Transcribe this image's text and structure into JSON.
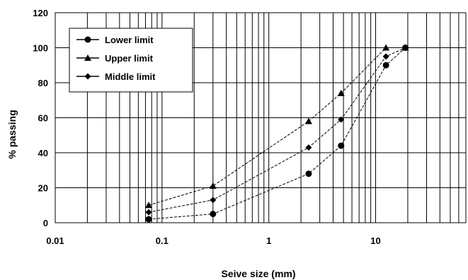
{
  "chart_data": {
    "type": "line",
    "title": "",
    "xlabel": "Seive size (mm)",
    "ylabel": "% passing",
    "x_scale": "log",
    "xlim": [
      0.01,
      70
    ],
    "ylim": [
      0,
      120
    ],
    "x_ticks": [
      {
        "value": 0.01,
        "label": "0.01"
      },
      {
        "value": 0.1,
        "label": "0.1"
      },
      {
        "value": 1,
        "label": "1"
      },
      {
        "value": 10,
        "label": "10"
      }
    ],
    "y_ticks": [
      {
        "value": 0,
        "label": "0"
      },
      {
        "value": 20,
        "label": "20"
      },
      {
        "value": 40,
        "label": "40"
      },
      {
        "value": 60,
        "label": "60"
      },
      {
        "value": 80,
        "label": "80"
      },
      {
        "value": 100,
        "label": "100"
      },
      {
        "value": 120,
        "label": "120"
      }
    ],
    "grid": true,
    "legend_position": "top-left",
    "series": [
      {
        "name": "Lower limit",
        "marker": "circle",
        "x": [
          0.075,
          0.3,
          2.36,
          4.75,
          12.5,
          19
        ],
        "y": [
          2,
          5,
          28,
          44,
          90,
          100
        ]
      },
      {
        "name": "Upper limit",
        "marker": "triangle",
        "x": [
          0.075,
          0.3,
          2.36,
          4.75,
          12.5,
          19
        ],
        "y": [
          10,
          21,
          58,
          74,
          100,
          100
        ]
      },
      {
        "name": "Middle limit",
        "marker": "diamond",
        "x": [
          0.075,
          0.3,
          2.36,
          4.75,
          12.5,
          19
        ],
        "y": [
          6,
          13,
          43,
          59,
          95,
          100
        ]
      }
    ]
  }
}
